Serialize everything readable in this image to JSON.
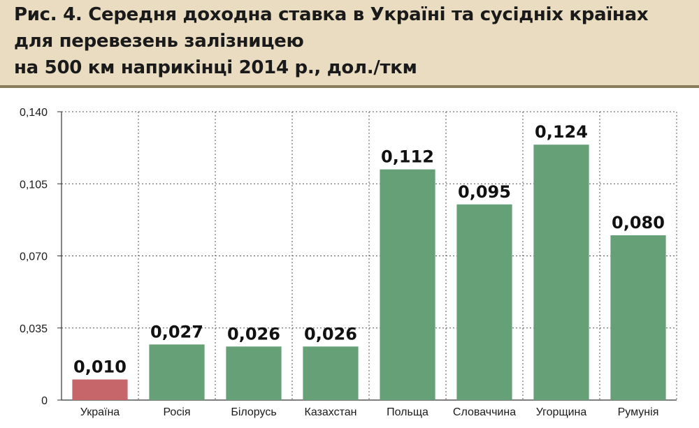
{
  "chart_data": {
    "type": "bar",
    "title_lines": [
      "Рис. 4. Середня доходна ставка в Україні та сусідніх країнах",
      "для перевезень залізницею",
      "на 500 км наприкінці 2014 р., дол./ткм"
    ],
    "categories": [
      "Україна",
      "Росія",
      "Білорусь",
      "Казахстан",
      "Польща",
      "Словаччина",
      "Угорщина",
      "Румунія"
    ],
    "values": [
      0.01,
      0.027,
      0.026,
      0.026,
      0.112,
      0.095,
      0.124,
      0.08
    ],
    "value_labels": [
      "0,010",
      "0,027",
      "0,026",
      "0,026",
      "0,112",
      "0,095",
      "0,124",
      "0,080"
    ],
    "y_ticks": [
      0,
      0.035,
      0.07,
      0.105,
      0.14
    ],
    "y_tick_labels": [
      "0",
      "0,035",
      "0,070",
      "0,105",
      "0,140"
    ],
    "ylim": [
      0,
      0.14
    ],
    "xlabel": "",
    "ylabel": "",
    "grid": "dotted",
    "legend": "none",
    "colors": {
      "highlight": "#c7666a",
      "default": "#66a077",
      "header_bg": "#e9dcc0",
      "header_border": "#8b7d5c"
    },
    "highlight_index": 0
  }
}
